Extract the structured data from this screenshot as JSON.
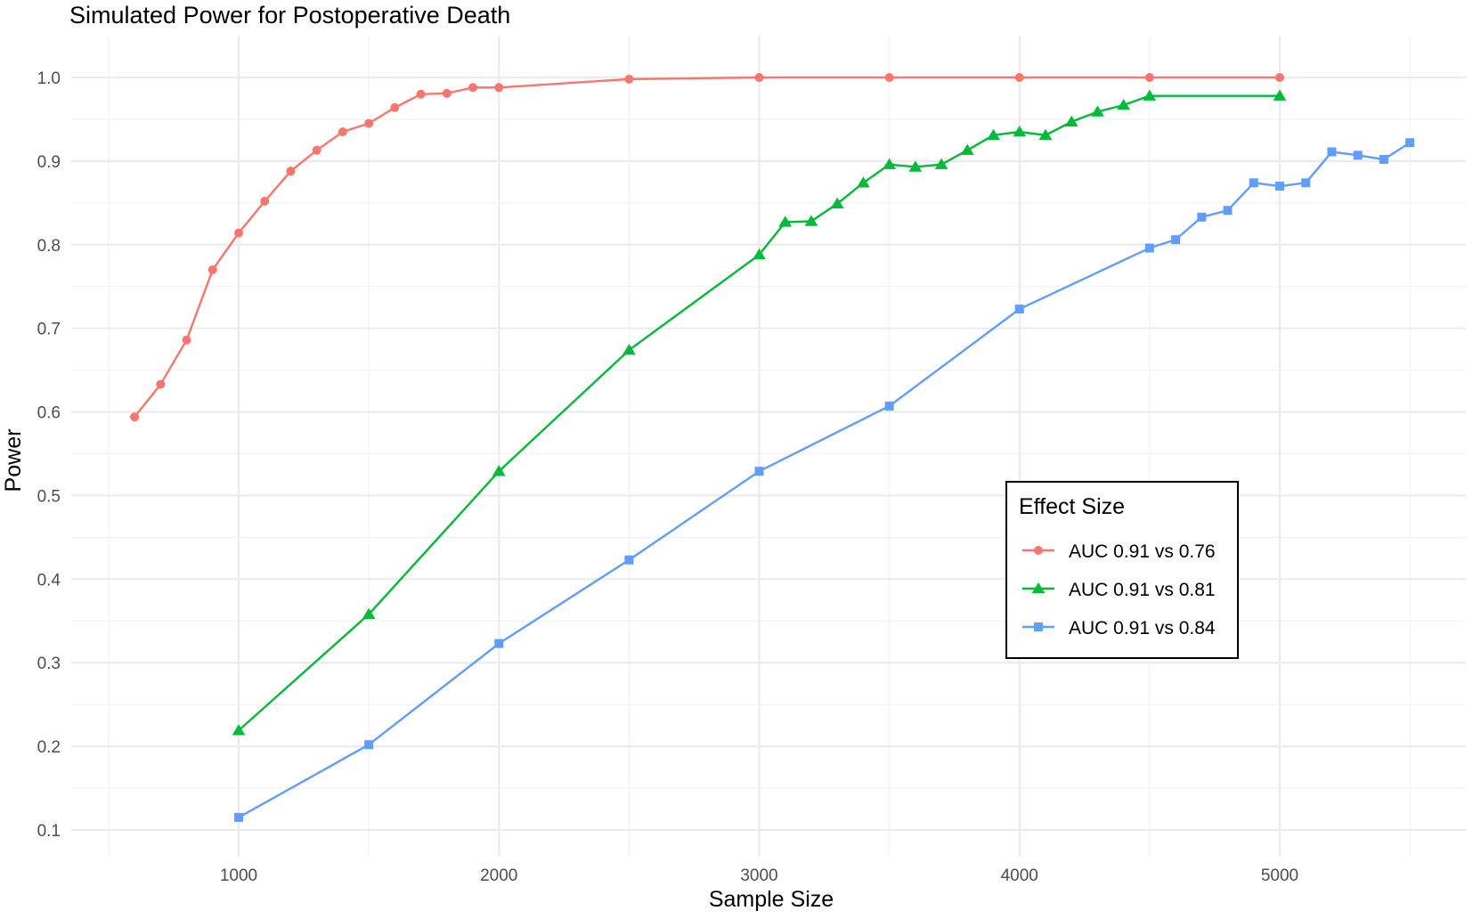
{
  "chart_data": {
    "type": "line",
    "title": "Simulated Power for Postoperative Death",
    "xlabel": "Sample Size",
    "ylabel": "Power",
    "xlim": [
      500,
      5500
    ],
    "ylim": [
      0.1,
      1.0
    ],
    "x_ticks": [
      1000,
      2000,
      3000,
      4000,
      5000
    ],
    "y_ticks": [
      0.1,
      0.2,
      0.3,
      0.4,
      0.5,
      0.6,
      0.7,
      0.8,
      0.9,
      1.0
    ],
    "x_tick_labels": [
      "1000",
      "2000",
      "3000",
      "4000",
      "5000"
    ],
    "y_tick_labels": [
      "0.1",
      "0.2",
      "0.3",
      "0.4",
      "0.5",
      "0.6",
      "0.7",
      "0.8",
      "0.9",
      "1.0"
    ],
    "grid": true,
    "legend": {
      "title": "Effect Size",
      "placement": "right"
    },
    "series": [
      {
        "name": "AUC 0.91 vs 0.76",
        "color": "#f8766d",
        "marker": "circle",
        "x": [
          600,
          700,
          800,
          900,
          1000,
          1100,
          1200,
          1300,
          1400,
          1500,
          1600,
          1700,
          1800,
          1900,
          2000,
          2500,
          3000,
          3500,
          4000,
          4500,
          5000
        ],
        "y": [
          0.594,
          0.633,
          0.686,
          0.77,
          0.814,
          0.852,
          0.888,
          0.913,
          0.935,
          0.945,
          0.964,
          0.98,
          0.981,
          0.988,
          0.988,
          0.998,
          1.0,
          1.0,
          1.0,
          1.0,
          1.0
        ]
      },
      {
        "name": "AUC 0.91 vs 0.81",
        "color": "#00ba38",
        "marker": "triangle",
        "x": [
          1000,
          1500,
          2000,
          2500,
          3000,
          3100,
          3200,
          3300,
          3400,
          3500,
          3600,
          3700,
          3800,
          3900,
          4000,
          4100,
          4200,
          4300,
          4400,
          4500,
          5000
        ],
        "y": [
          0.219,
          0.358,
          0.529,
          0.674,
          0.788,
          0.827,
          0.828,
          0.849,
          0.874,
          0.896,
          0.893,
          0.896,
          0.913,
          0.931,
          0.935,
          0.931,
          0.947,
          0.959,
          0.967,
          0.978,
          0.978
        ]
      },
      {
        "name": "AUC 0.91 vs 0.84",
        "color": "#619cff",
        "marker": "square",
        "x": [
          1000,
          1500,
          2000,
          2500,
          3000,
          3500,
          4000,
          4500,
          4600,
          4700,
          4800,
          4900,
          5000,
          5100,
          5200,
          5300,
          5400,
          5500
        ],
        "y": [
          0.115,
          0.202,
          0.323,
          0.423,
          0.529,
          0.607,
          0.723,
          0.796,
          0.806,
          0.833,
          0.841,
          0.874,
          0.87,
          0.874,
          0.911,
          0.907,
          0.902,
          0.922
        ]
      }
    ]
  }
}
